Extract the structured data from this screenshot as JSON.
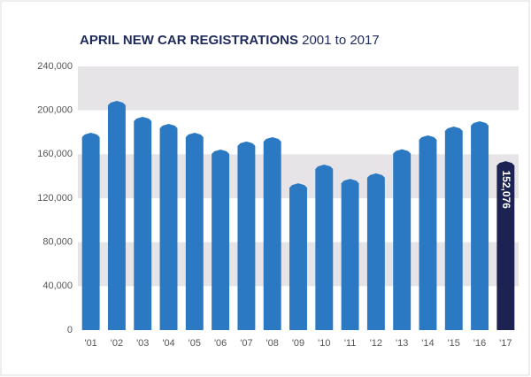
{
  "chart_data": {
    "type": "bar",
    "title": "APRIL NEW CAR REGISTRATIONS",
    "subtitle": "2001 to 2017",
    "categories": [
      "'01",
      "'02",
      "'03",
      "'04",
      "'05",
      "'06",
      "'07",
      "'08",
      "'09",
      "'10",
      "'11",
      "'12",
      "'13",
      "'14",
      "'15",
      "'16",
      "'17"
    ],
    "values": [
      178000,
      207000,
      192500,
      186000,
      178000,
      162700,
      170000,
      174000,
      132000,
      149000,
      136000,
      141000,
      163000,
      175600,
      183600,
      188500,
      152076
    ],
    "value_labels": [
      null,
      null,
      null,
      null,
      null,
      null,
      null,
      null,
      null,
      null,
      null,
      null,
      null,
      null,
      null,
      null,
      "152,076"
    ],
    "colors": [
      "#2b79c2",
      "#2b79c2",
      "#2b79c2",
      "#2b79c2",
      "#2b79c2",
      "#2b79c2",
      "#2b79c2",
      "#2b79c2",
      "#2b79c2",
      "#2b79c2",
      "#2b79c2",
      "#2b79c2",
      "#2b79c2",
      "#2b79c2",
      "#2b79c2",
      "#2b79c2",
      "#1c2352"
    ],
    "ylim": [
      0,
      240000
    ],
    "yticks": [
      0,
      {
        "value": 40000,
        "label": "40,000"
      },
      {
        "value": 80000,
        "label": "80,000"
      },
      {
        "value": 120000,
        "label": "120,000"
      },
      {
        "value": 160000,
        "label": "160,000"
      },
      {
        "value": 200000,
        "label": "200,000"
      },
      {
        "value": 240000,
        "label": "240,000"
      }
    ],
    "grid": "bands"
  }
}
